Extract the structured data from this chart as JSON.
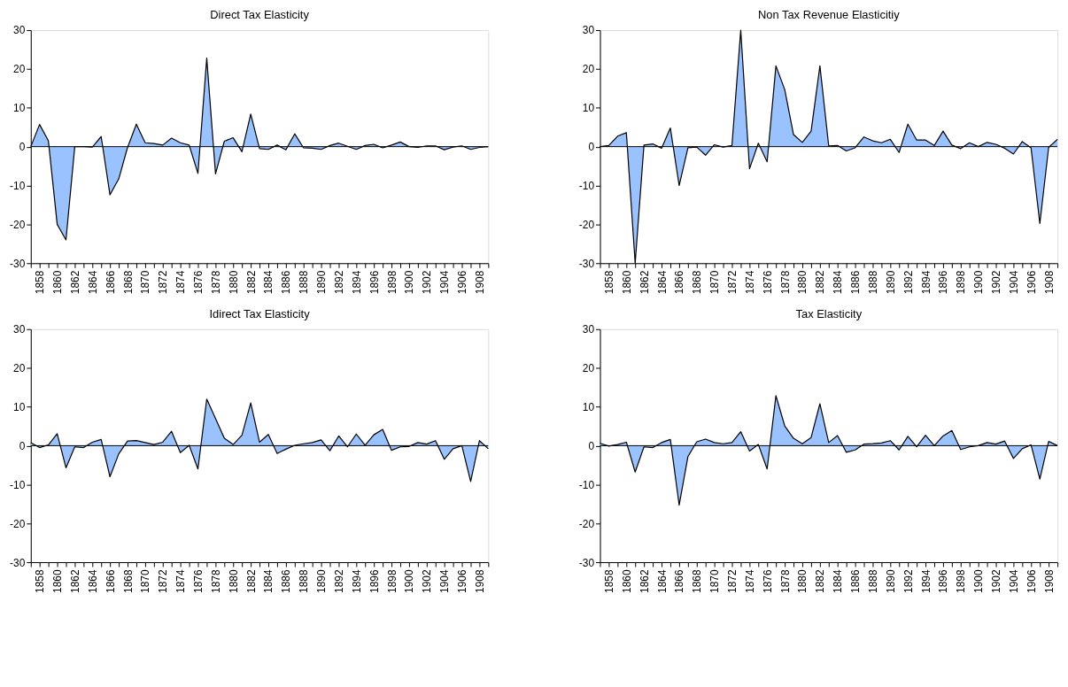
{
  "chart_data": [
    {
      "type": "area",
      "title": "Direct Tax Elasticity",
      "x": [
        1857,
        1858,
        1859,
        1860,
        1861,
        1862,
        1863,
        1864,
        1865,
        1866,
        1867,
        1868,
        1869,
        1870,
        1871,
        1872,
        1873,
        1874,
        1875,
        1876,
        1877,
        1878,
        1879,
        1880,
        1881,
        1882,
        1883,
        1884,
        1885,
        1886,
        1887,
        1888,
        1889,
        1890,
        1891,
        1892,
        1893,
        1894,
        1895,
        1896,
        1897,
        1898,
        1899,
        1900,
        1901,
        1902,
        1903,
        1904,
        1905,
        1906,
        1907,
        1908,
        1909
      ],
      "series": [
        {
          "color": "#99c2ff",
          "values": [
            0,
            5.7,
            1.5,
            -20,
            -24,
            0,
            0,
            -0.1,
            2.6,
            -12.4,
            -8.3,
            -0.2,
            5.8,
            1.0,
            0.8,
            0.4,
            2.2,
            1.0,
            0.4,
            -6.9,
            22.8,
            -7,
            1.4,
            2.3,
            -1.3,
            8.4,
            -0.5,
            -0.7,
            0.4,
            -0.8,
            3.3,
            -0.3,
            -0.4,
            -0.7,
            0.3,
            0.9,
            0.1,
            -0.7,
            0.3,
            0.6,
            -0.3,
            0.4,
            1.2,
            0,
            -0.2,
            0.2,
            0.2,
            -0.8,
            -0.1,
            0.2,
            -0.7,
            -0.2,
            0
          ]
        }
      ],
      "xlim": [
        1857,
        1909
      ],
      "ylim": [
        -30,
        30
      ],
      "yticks": [
        -30,
        -20,
        -10,
        0,
        10,
        20,
        30
      ],
      "xticks": [
        {
          "value": 1857,
          "label": null
        },
        1858,
        {
          "value": 1859,
          "label": null
        },
        1860,
        {
          "value": 1861,
          "label": null
        },
        1862,
        {
          "value": 1863,
          "label": null
        },
        1864,
        {
          "value": 1865,
          "label": null
        },
        1866,
        {
          "value": 1867,
          "label": null
        },
        1868,
        {
          "value": 1869,
          "label": null
        },
        1870,
        {
          "value": 1871,
          "label": null
        },
        1872,
        {
          "value": 1873,
          "label": null
        },
        1874,
        {
          "value": 1875,
          "label": null
        },
        1876,
        {
          "value": 1877,
          "label": null
        },
        1878,
        {
          "value": 1879,
          "label": null
        },
        1880,
        {
          "value": 1881,
          "label": null
        },
        1882,
        {
          "value": 1883,
          "label": null
        },
        1884,
        {
          "value": 1885,
          "label": null
        },
        1886,
        {
          "value": 1887,
          "label": null
        },
        1888,
        {
          "value": 1889,
          "label": null
        },
        1890,
        {
          "value": 1891,
          "label": null
        },
        1892,
        {
          "value": 1893,
          "label": null
        },
        1894,
        {
          "value": 1895,
          "label": null
        },
        1896,
        {
          "value": 1897,
          "label": null
        },
        1898,
        {
          "value": 1899,
          "label": null
        },
        1900,
        {
          "value": 1901,
          "label": null
        },
        1902,
        {
          "value": 1903,
          "label": null
        },
        1904,
        {
          "value": 1905,
          "label": null
        },
        1906,
        {
          "value": 1907,
          "label": null
        },
        1908,
        {
          "value": 1909,
          "label": null
        }
      ],
      "ref_lines": [
        {
          "axis": "y",
          "value": 0,
          "color": "#000000"
        }
      ],
      "grid": false
    },
    {
      "type": "area",
      "title": "Non Tax Revenue Elasticitiy",
      "x": [
        1857,
        1858,
        1859,
        1860,
        1861,
        1862,
        1863,
        1864,
        1865,
        1866,
        1867,
        1868,
        1869,
        1870,
        1871,
        1872,
        1873,
        1874,
        1875,
        1876,
        1877,
        1878,
        1879,
        1880,
        1881,
        1882,
        1883,
        1884,
        1885,
        1886,
        1887,
        1888,
        1889,
        1890,
        1891,
        1892,
        1893,
        1894,
        1895,
        1896,
        1897,
        1898,
        1899,
        1900,
        1901,
        1902,
        1903,
        1904,
        1905,
        1906,
        1907,
        1908,
        1909
      ],
      "series": [
        {
          "color": "#99c2ff",
          "values": [
            0,
            0.3,
            2.7,
            3.6,
            -30,
            0.4,
            0.7,
            -0.4,
            4.8,
            -10,
            -0.3,
            -0.1,
            -2.2,
            0.5,
            -0.1,
            0.3,
            30,
            -5.7,
            0.9,
            -3.9,
            20.8,
            14.7,
            3.1,
            1.1,
            4.0,
            20.8,
            0.2,
            0.3,
            -1.1,
            -0.3,
            2.5,
            1.5,
            1.0,
            1.9,
            -1.5,
            5.8,
            1.7,
            1.7,
            0.3,
            4.0,
            0.4,
            -0.5,
            1.0,
            0,
            1.1,
            0.6,
            -0.4,
            -1.9,
            1.3,
            -0.3,
            -19.8,
            -0.2,
            1.9
          ]
        }
      ],
      "xlim": [
        1857,
        1909
      ],
      "ylim": [
        -30,
        30
      ],
      "yticks": [
        -30,
        -20,
        -10,
        0,
        10,
        20,
        30
      ],
      "xticks": [
        {
          "value": 1857,
          "label": null
        },
        1858,
        {
          "value": 1859,
          "label": null
        },
        1860,
        {
          "value": 1861,
          "label": null
        },
        1862,
        {
          "value": 1863,
          "label": null
        },
        1864,
        {
          "value": 1865,
          "label": null
        },
        1866,
        {
          "value": 1867,
          "label": null
        },
        1868,
        {
          "value": 1869,
          "label": null
        },
        1870,
        {
          "value": 1871,
          "label": null
        },
        1872,
        {
          "value": 1873,
          "label": null
        },
        1874,
        {
          "value": 1875,
          "label": null
        },
        1876,
        {
          "value": 1877,
          "label": null
        },
        1878,
        {
          "value": 1879,
          "label": null
        },
        1880,
        {
          "value": 1881,
          "label": null
        },
        1882,
        {
          "value": 1883,
          "label": null
        },
        1884,
        {
          "value": 1885,
          "label": null
        },
        1886,
        {
          "value": 1887,
          "label": null
        },
        1888,
        {
          "value": 1889,
          "label": null
        },
        1890,
        {
          "value": 1891,
          "label": null
        },
        1892,
        {
          "value": 1893,
          "label": null
        },
        1894,
        {
          "value": 1895,
          "label": null
        },
        1896,
        {
          "value": 1897,
          "label": null
        },
        1898,
        {
          "value": 1899,
          "label": null
        },
        1900,
        {
          "value": 1901,
          "label": null
        },
        1902,
        {
          "value": 1903,
          "label": null
        },
        1904,
        {
          "value": 1905,
          "label": null
        },
        1906,
        {
          "value": 1907,
          "label": null
        },
        1908,
        {
          "value": 1909,
          "label": null
        }
      ],
      "ref_lines": [
        {
          "axis": "y",
          "value": 0,
          "color": "#000000"
        }
      ],
      "grid": false
    },
    {
      "type": "area",
      "title": "Idirect Tax Elasticity",
      "x": [
        1857,
        1858,
        1859,
        1860,
        1861,
        1862,
        1863,
        1864,
        1865,
        1866,
        1867,
        1868,
        1869,
        1870,
        1871,
        1872,
        1873,
        1874,
        1875,
        1876,
        1877,
        1878,
        1879,
        1880,
        1881,
        1882,
        1883,
        1884,
        1885,
        1886,
        1887,
        1888,
        1889,
        1890,
        1891,
        1892,
        1893,
        1894,
        1895,
        1896,
        1897,
        1898,
        1899,
        1900,
        1901,
        1902,
        1903,
        1904,
        1905,
        1906,
        1907,
        1908,
        1909
      ],
      "series": [
        {
          "color": "#99c2ff",
          "values": [
            0.8,
            -0.5,
            0.2,
            3.1,
            -5.7,
            -0.3,
            -0.5,
            0.9,
            1.6,
            -8.0,
            -2.1,
            1.2,
            1.3,
            0.8,
            0.3,
            0.9,
            3.7,
            -1.8,
            0.1,
            -6.0,
            12.0,
            7.0,
            1.9,
            0.3,
            2.7,
            11.0,
            0.9,
            2.9,
            -2.0,
            -0.9,
            0.1,
            0.5,
            0.8,
            1.5,
            -1.3,
            2.5,
            -0.3,
            3.0,
            0.1,
            2.8,
            4.2,
            -1.2,
            -0.3,
            -0.2,
            0.8,
            0.4,
            1.3,
            -3.5,
            -0.8,
            0,
            -9.2,
            1.3,
            -0.8
          ]
        }
      ],
      "xlim": [
        1857,
        1909
      ],
      "ylim": [
        -30,
        30
      ],
      "yticks": [
        -30,
        -20,
        -10,
        0,
        10,
        20,
        30
      ],
      "xticks": [
        {
          "value": 1857,
          "label": null
        },
        1858,
        {
          "value": 1859,
          "label": null
        },
        1860,
        {
          "value": 1861,
          "label": null
        },
        1862,
        {
          "value": 1863,
          "label": null
        },
        1864,
        {
          "value": 1865,
          "label": null
        },
        1866,
        {
          "value": 1867,
          "label": null
        },
        1868,
        {
          "value": 1869,
          "label": null
        },
        1870,
        {
          "value": 1871,
          "label": null
        },
        1872,
        {
          "value": 1873,
          "label": null
        },
        1874,
        {
          "value": 1875,
          "label": null
        },
        1876,
        {
          "value": 1877,
          "label": null
        },
        1878,
        {
          "value": 1879,
          "label": null
        },
        1880,
        {
          "value": 1881,
          "label": null
        },
        1882,
        {
          "value": 1883,
          "label": null
        },
        1884,
        {
          "value": 1885,
          "label": null
        },
        1886,
        {
          "value": 1887,
          "label": null
        },
        1888,
        {
          "value": 1889,
          "label": null
        },
        1890,
        {
          "value": 1891,
          "label": null
        },
        1892,
        {
          "value": 1893,
          "label": null
        },
        1894,
        {
          "value": 1895,
          "label": null
        },
        1896,
        {
          "value": 1897,
          "label": null
        },
        1898,
        {
          "value": 1899,
          "label": null
        },
        1900,
        {
          "value": 1901,
          "label": null
        },
        1902,
        {
          "value": 1903,
          "label": null
        },
        1904,
        {
          "value": 1905,
          "label": null
        },
        1906,
        {
          "value": 1907,
          "label": null
        },
        1908,
        {
          "value": 1909,
          "label": null
        }
      ],
      "ref_lines": [
        {
          "axis": "y",
          "value": 0,
          "color": "#000000"
        }
      ],
      "grid": false
    },
    {
      "type": "area",
      "title": "Tax Elasticity",
      "x": [
        1857,
        1858,
        1859,
        1860,
        1861,
        1862,
        1863,
        1864,
        1865,
        1866,
        1867,
        1868,
        1869,
        1870,
        1871,
        1872,
        1873,
        1874,
        1875,
        1876,
        1877,
        1878,
        1879,
        1880,
        1881,
        1882,
        1883,
        1884,
        1885,
        1886,
        1887,
        1888,
        1889,
        1890,
        1891,
        1892,
        1893,
        1894,
        1895,
        1896,
        1897,
        1898,
        1899,
        1900,
        1901,
        1902,
        1903,
        1904,
        1905,
        1906,
        1907,
        1908,
        1909
      ],
      "series": [
        {
          "color": "#99c2ff",
          "values": [
            0.6,
            -0.1,
            0.3,
            0.9,
            -6.8,
            -0.3,
            -0.5,
            0.8,
            1.6,
            -15.3,
            -2.8,
            1.0,
            1.7,
            0.8,
            0.5,
            0.8,
            3.6,
            -1.4,
            0.3,
            -6.0,
            12.9,
            5.1,
            1.9,
            0.5,
            2.1,
            10.8,
            0.8,
            2.6,
            -1.7,
            -1.1,
            0.4,
            0.5,
            0.7,
            1.3,
            -1.1,
            2.4,
            -0.3,
            2.7,
            0,
            2.5,
            3.9,
            -1.0,
            -0.3,
            0,
            0.8,
            0.4,
            1.2,
            -3.3,
            -0.8,
            0.2,
            -8.6,
            1.1,
            0
          ]
        }
      ],
      "xlim": [
        1857,
        1909
      ],
      "ylim": [
        -30,
        30
      ],
      "yticks": [
        -30,
        -20,
        -10,
        0,
        10,
        20,
        30
      ],
      "xticks": [
        {
          "value": 1857,
          "label": null
        },
        1858,
        {
          "value": 1859,
          "label": null
        },
        1860,
        {
          "value": 1861,
          "label": null
        },
        1862,
        {
          "value": 1863,
          "label": null
        },
        1864,
        {
          "value": 1865,
          "label": null
        },
        1866,
        {
          "value": 1867,
          "label": null
        },
        1868,
        {
          "value": 1869,
          "label": null
        },
        1870,
        {
          "value": 1871,
          "label": null
        },
        1872,
        {
          "value": 1873,
          "label": null
        },
        1874,
        {
          "value": 1875,
          "label": null
        },
        1876,
        {
          "value": 1877,
          "label": null
        },
        1878,
        {
          "value": 1879,
          "label": null
        },
        1880,
        {
          "value": 1881,
          "label": null
        },
        1882,
        {
          "value": 1883,
          "label": null
        },
        1884,
        {
          "value": 1885,
          "label": null
        },
        1886,
        {
          "value": 1887,
          "label": null
        },
        1888,
        {
          "value": 1889,
          "label": null
        },
        1890,
        {
          "value": 1891,
          "label": null
        },
        1892,
        {
          "value": 1893,
          "label": null
        },
        1894,
        {
          "value": 1895,
          "label": null
        },
        1896,
        {
          "value": 1897,
          "label": null
        },
        1898,
        {
          "value": 1899,
          "label": null
        },
        1900,
        {
          "value": 1901,
          "label": null
        },
        1902,
        {
          "value": 1903,
          "label": null
        },
        1904,
        {
          "value": 1905,
          "label": null
        },
        1906,
        {
          "value": 1907,
          "label": null
        },
        1908,
        {
          "value": 1909,
          "label": null
        }
      ],
      "ref_lines": [
        {
          "axis": "y",
          "value": 0,
          "color": "#000000"
        }
      ],
      "grid": false
    }
  ]
}
